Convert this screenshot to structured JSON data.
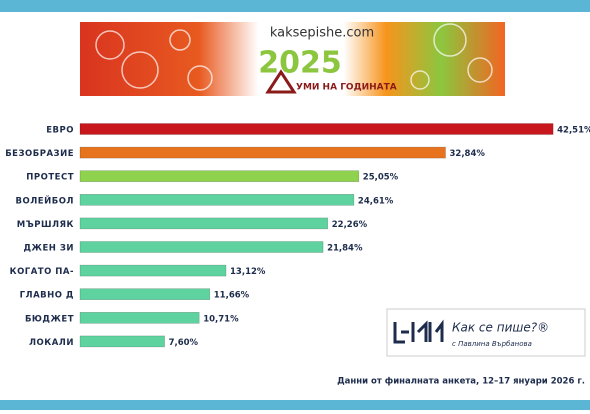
{
  "chart_data": {
    "type": "bar",
    "categories": [
      "ЕВРО",
      "БЕЗОБРАЗИЕ",
      "ПРОТЕСТ",
      "ВОЛЕЙБОЛ",
      "МЪРШЛЯК",
      "ДЖЕН ЗИ",
      "КОГАТО ПА-",
      "ГЛАВНО Д",
      "БЮДЖЕТ",
      "ЛОКАЛИ"
    ],
    "values": [
      42.51,
      32.84,
      25.05,
      24.61,
      22.26,
      21.84,
      13.12,
      11.66,
      10.71,
      7.6
    ],
    "value_labels": [
      "42,51%",
      "32,84%",
      "25,05%",
      "24,61%",
      "22,26%",
      "21,84%",
      "13,12%",
      "11,66%",
      "10,71%",
      "7,60%"
    ],
    "colors": [
      "#c8161d",
      "#e8731e",
      "#8ed24e",
      "#5ed39f",
      "#5ed39f",
      "#5ed39f",
      "#5ed39f",
      "#5ed39f",
      "#5ed39f",
      "#5ed39f"
    ],
    "source": "Данни от финалната анкета, 12–17 януари 2026 г."
  },
  "banner": {
    "site": "kaksepishe.com",
    "year": "2025",
    "subtitle": "УМИ НА ГОДИНАТА"
  },
  "logo": {
    "title": "Как се пише?®",
    "author": "с Павлина Върбанова"
  }
}
